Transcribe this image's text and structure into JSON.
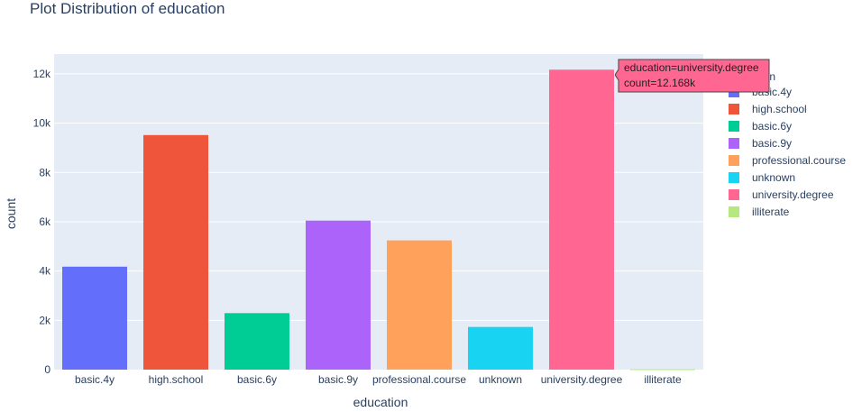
{
  "colors": {
    "plot_bg": "#e5ecf6",
    "grid": "#ffffff",
    "text": "#2a3f5f"
  },
  "chart_data": {
    "type": "bar",
    "title": "Plot Distribution of education",
    "xlabel": "education",
    "ylabel": "count",
    "ylim": [
      0,
      12800
    ],
    "yticks": [
      0,
      2000,
      4000,
      6000,
      8000,
      10000,
      12000
    ],
    "ytick_labels": [
      "0",
      "2k",
      "4k",
      "6k",
      "8k",
      "10k",
      "12k"
    ],
    "categories": [
      "basic.4y",
      "high.school",
      "basic.6y",
      "basic.9y",
      "professional.course",
      "unknown",
      "university.degree",
      "illiterate"
    ],
    "values": [
      4176,
      9515,
      2292,
      6045,
      5243,
      1731,
      12168,
      18
    ],
    "colors": [
      "#636efa",
      "#ef553b",
      "#00cc96",
      "#ab63fa",
      "#ffa15a",
      "#19d3f3",
      "#ff6692",
      "#b6e880"
    ],
    "legend_title": "education",
    "legend_placement": "right",
    "grid": true,
    "tooltip": {
      "line1": "education=university.degree",
      "line2": "count=12.168k",
      "color": "#ff6692"
    }
  }
}
